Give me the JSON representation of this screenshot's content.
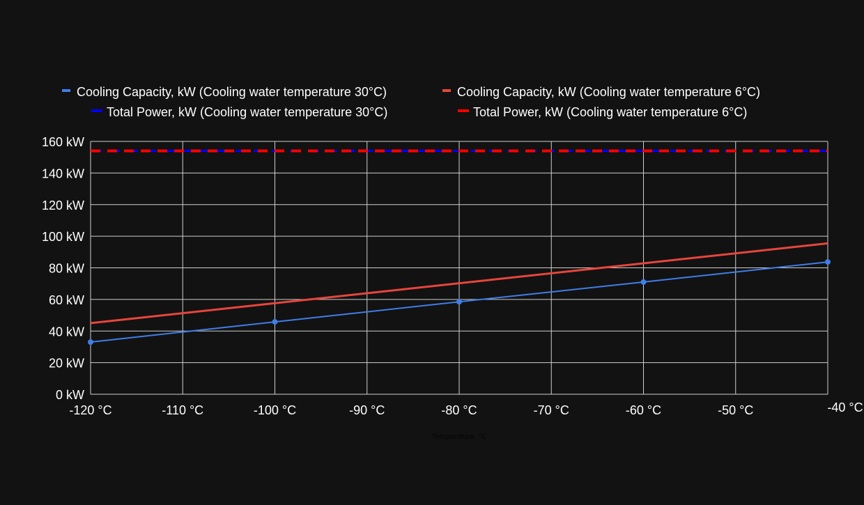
{
  "chart_data": {
    "type": "line",
    "title": "",
    "xlabel": "Temperature, °C",
    "ylabel": "",
    "xlim": [
      -120,
      -40
    ],
    "ylim": [
      0,
      160
    ],
    "grid": true,
    "legend_position": "top",
    "x_ticks": [
      -120,
      -110,
      -100,
      -90,
      -80,
      -70,
      -60,
      -50,
      -40
    ],
    "x_tick_labels": [
      "-120 °C",
      "-110 °C",
      "-100 °C",
      "-90 °C",
      "-80 °C",
      "-70 °C",
      "-60 °C",
      "-50 °C",
      "-40 °C"
    ],
    "y_ticks": [
      0,
      20,
      40,
      60,
      80,
      100,
      120,
      140,
      160
    ],
    "y_tick_labels": [
      "0 kW",
      "20 kW",
      "40 kW",
      "60 kW",
      "80 kW",
      "100 kW",
      "120 kW",
      "140 kW",
      "160 kW"
    ],
    "series": [
      {
        "name": "Cooling Capacity, kW (Cooling water temperature 30°C)",
        "color": "#3f7ee8",
        "style": "solid",
        "markers": true,
        "x": [
          -120,
          -100,
          -80,
          -60,
          -40
        ],
        "values": [
          33,
          45.8,
          58.5,
          71,
          83.7
        ]
      },
      {
        "name": "Cooling Capacity, kW (Cooling water temperature 6°C)",
        "color": "#e8453c",
        "style": "solid",
        "markers": false,
        "x": [
          -120,
          -40
        ],
        "values": [
          45,
          95.5
        ]
      },
      {
        "name": "Total Power, kW (Cooling water temperature 30°C)",
        "color": "#0000ff",
        "style": "dashed",
        "markers": false,
        "x": [
          -120,
          -40
        ],
        "values": [
          154,
          154
        ]
      },
      {
        "name": "Total Power, kW (Cooling water temperature 6°C)",
        "color": "#ff0000",
        "style": "dashed",
        "markers": false,
        "x": [
          -120,
          -40
        ],
        "values": [
          154,
          154
        ]
      }
    ]
  }
}
